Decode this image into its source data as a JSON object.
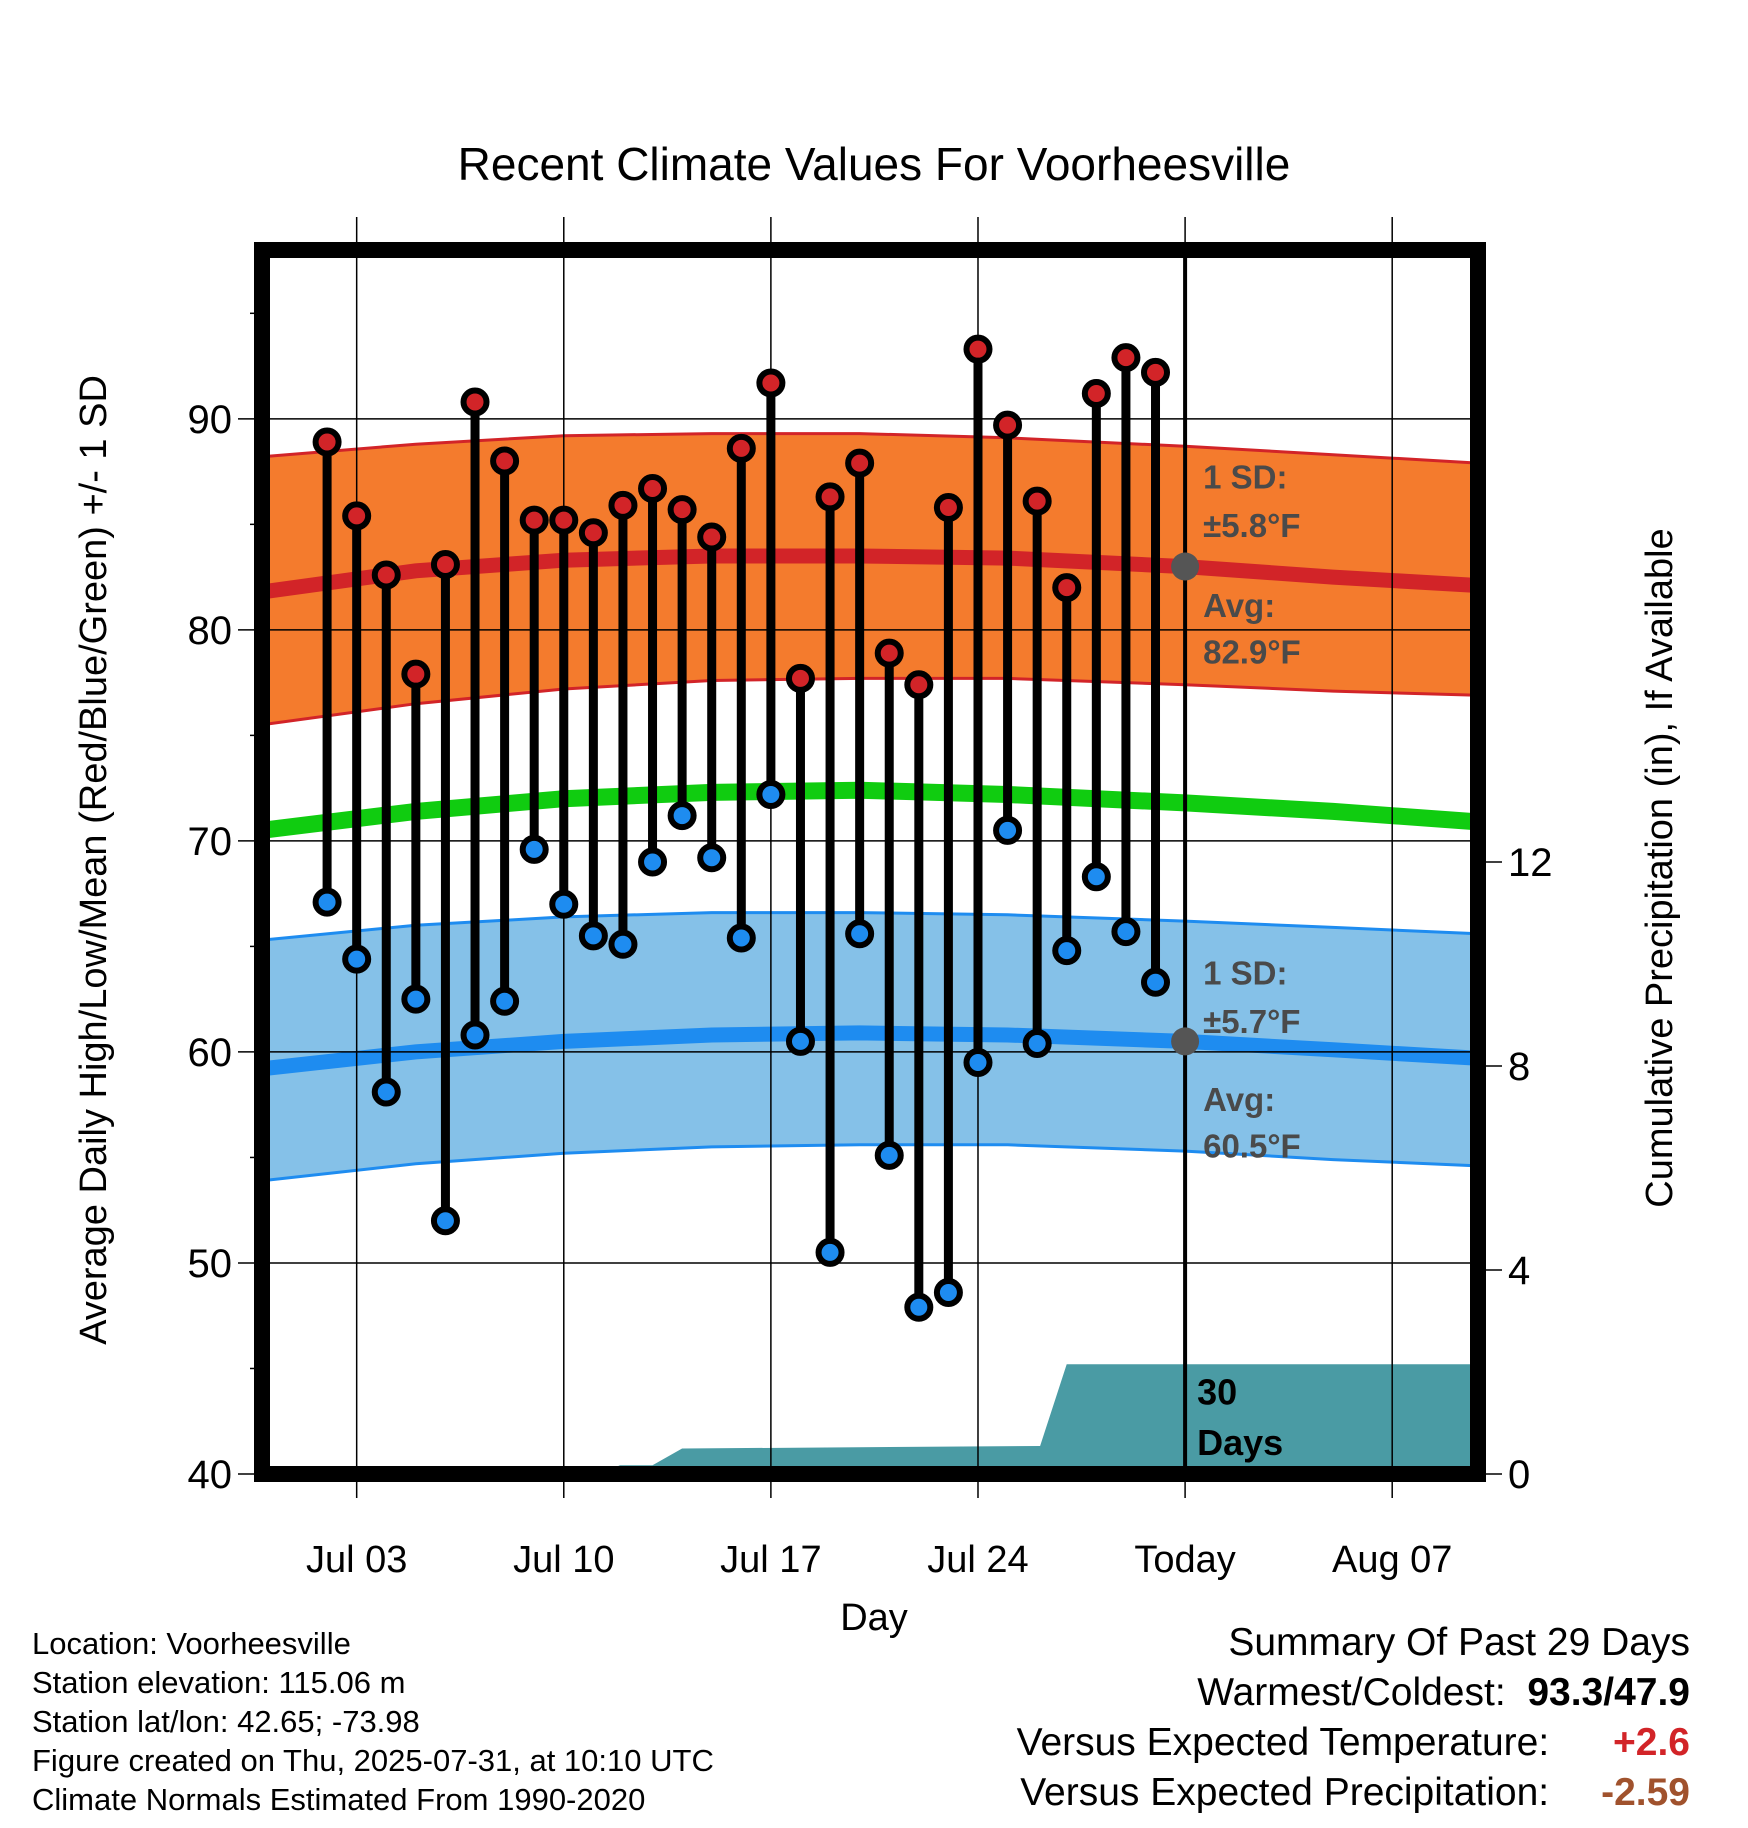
{
  "chart_data": {
    "type": "line",
    "title": "Recent Climate Values For Voorheesville",
    "xlabel": "Day",
    "ylabel": "Average Daily High/Low/Mean (Red/Blue/Green) +/- 1 SD",
    "y2label": "Cumulative Precipitation (in), If Available",
    "ylim": [
      40,
      98
    ],
    "y2lim": [
      0,
      24
    ],
    "y_ticks": [
      "40",
      "50",
      "60",
      "70",
      "80",
      "90"
    ],
    "y2_ticks": [
      "0",
      "4",
      "8",
      "12"
    ],
    "x_ticks": [
      {
        "day": 3,
        "label": "Jul 03"
      },
      {
        "day": 10,
        "label": "Jul 10"
      },
      {
        "day": 17,
        "label": "Jul 17"
      },
      {
        "day": 24,
        "label": "Jul 24"
      },
      {
        "day": 31,
        "label": "Today"
      },
      {
        "day": 38,
        "label": "Aug 07"
      }
    ],
    "x_range_days": [
      -0.2,
      40.9
    ],
    "today_day": 31,
    "days": [
      2,
      3,
      4,
      5,
      6,
      7,
      8,
      9,
      10,
      11,
      12,
      13,
      14,
      15,
      16,
      17,
      18,
      19,
      20,
      21,
      22,
      23,
      24,
      25,
      26,
      27,
      28,
      29,
      30
    ],
    "daily_high": [
      88.9,
      85.4,
      82.6,
      77.9,
      83.1,
      90.8,
      88.0,
      85.2,
      85.2,
      84.6,
      85.9,
      86.7,
      85.7,
      84.4,
      88.6,
      91.7,
      77.7,
      86.3,
      87.9,
      78.9,
      77.4,
      85.8,
      93.3,
      89.7,
      86.1,
      82.0,
      91.2,
      92.9,
      92.2
    ],
    "daily_low": [
      67.1,
      64.4,
      58.1,
      62.5,
      52.0,
      60.8,
      62.4,
      69.6,
      67.0,
      65.5,
      65.1,
      69.0,
      71.2,
      69.2,
      65.4,
      72.2,
      60.5,
      50.5,
      65.6,
      55.1,
      47.9,
      48.6,
      59.5,
      70.5,
      60.4,
      64.8,
      68.3,
      65.7,
      63.3
    ],
    "normals": {
      "days": [
        -0.2,
        5,
        10,
        15,
        20,
        25,
        31,
        36,
        40.9
      ],
      "high_mean": [
        81.8,
        82.8,
        83.3,
        83.5,
        83.5,
        83.4,
        83.0,
        82.5,
        82.1
      ],
      "high_upper": [
        88.2,
        88.8,
        89.2,
        89.3,
        89.3,
        89.1,
        88.7,
        88.3,
        87.9
      ],
      "high_lower": [
        75.5,
        76.5,
        77.2,
        77.6,
        77.7,
        77.7,
        77.4,
        77.1,
        76.9
      ],
      "mean": [
        70.5,
        71.4,
        72.0,
        72.3,
        72.4,
        72.2,
        71.8,
        71.4,
        70.9
      ],
      "low_mean": [
        59.2,
        60.0,
        60.5,
        60.8,
        60.9,
        60.8,
        60.5,
        60.1,
        59.7
      ],
      "low_upper": [
        65.3,
        66.0,
        66.4,
        66.6,
        66.6,
        66.5,
        66.2,
        65.9,
        65.6
      ],
      "low_lower": [
        53.9,
        54.7,
        55.2,
        55.5,
        55.6,
        55.6,
        55.3,
        54.9,
        54.6
      ]
    },
    "precip": {
      "x": [
        -0.2,
        11.2,
        11.9,
        13.0,
        14.0,
        26.1,
        27.0,
        40.9
      ],
      "y": [
        0,
        0,
        0.17,
        0.17,
        0.5,
        0.55,
        2.15,
        2.15
      ]
    },
    "annotations": {
      "high_sd_label": "1 SD:",
      "high_sd_value": "±5.8°F",
      "high_avg_label": "Avg:",
      "high_avg_value": "82.9°F",
      "low_sd_label": "1 SD:",
      "low_sd_value": "±5.7°F",
      "low_avg_label": "Avg:",
      "low_avg_value": "60.5°F",
      "period_line1": "30",
      "period_line2": "Days"
    },
    "colors": {
      "high_band": "#f47b2d",
      "high_line": "#d22428",
      "high_dot": "#d22428",
      "low_band": "#85c1e8",
      "low_line": "#1e8cf0",
      "low_dot": "#1e8cf0",
      "mean_line": "#10cc10",
      "precip": "#4a9ba4",
      "annotation": "#4a4a4a"
    },
    "grid": true
  },
  "info": {
    "location": "Location: Voorheesville",
    "elevation": "Station elevation: 115.06 m",
    "latlon": "Station lat/lon: 42.65; -73.98",
    "created": "Figure created on Thu, 2025-07-31, at 10:10 UTC",
    "normals": "Climate Normals Estimated From 1990-2020"
  },
  "summary": {
    "title": "Summary Of Past 29 Days",
    "warm_cold_label": "Warmest/Coldest:",
    "warm_cold_value": "93.3/47.9",
    "temp_label": "Versus Expected Temperature:",
    "temp_value": "+2.6",
    "temp_color": "#d22428",
    "precip_label": "Versus Expected Precipitation:",
    "precip_value": "-2.59",
    "precip_color": "#a0522d"
  }
}
